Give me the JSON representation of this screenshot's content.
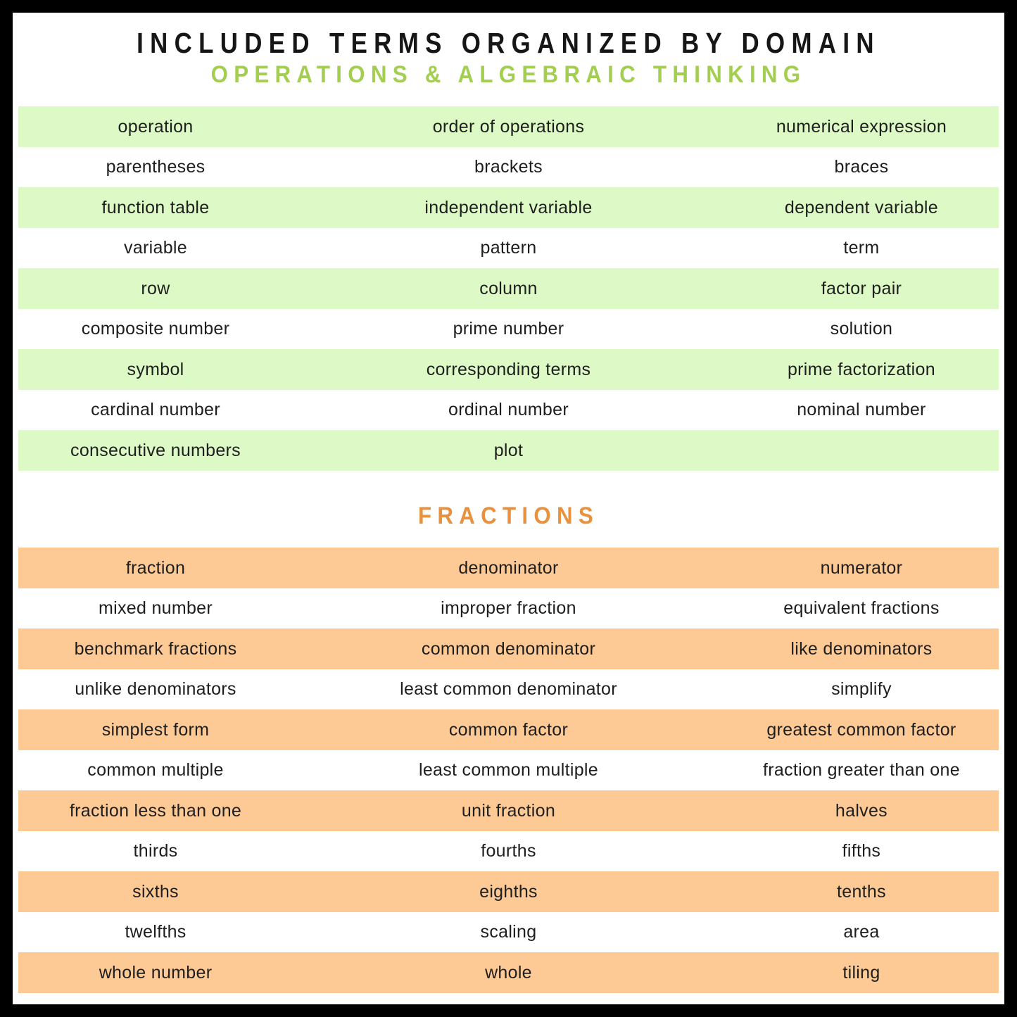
{
  "page": {
    "title": "INCLUDED TERMS ORGANIZED BY DOMAIN",
    "colors": {
      "frame": "#000000",
      "background": "#ffffff",
      "title_text": "#161616",
      "term_text": "#1e1e1e"
    }
  },
  "sections": [
    {
      "id": "operations-algebraic-thinking",
      "heading": "OPERATIONS & ALGEBRAIC THINKING",
      "heading_color": "#a3ce52",
      "row_color": "#ddfac6",
      "rows": [
        [
          "operation",
          "order of operations",
          "numerical expression"
        ],
        [
          "parentheses",
          "brackets",
          "braces"
        ],
        [
          "function table",
          "independent variable",
          "dependent variable"
        ],
        [
          "variable",
          "pattern",
          "term"
        ],
        [
          "row",
          "column",
          "factor pair"
        ],
        [
          "composite number",
          "prime number",
          "solution"
        ],
        [
          "symbol",
          "corresponding terms",
          "prime factorization"
        ],
        [
          "cardinal number",
          "ordinal number",
          "nominal number"
        ],
        [
          "consecutive numbers",
          "plot",
          ""
        ]
      ]
    },
    {
      "id": "fractions",
      "heading": "FRACTIONS",
      "heading_color": "#e8913f",
      "row_color": "#fdca95",
      "rows": [
        [
          "fraction",
          "denominator",
          "numerator"
        ],
        [
          "mixed number",
          "improper fraction",
          "equivalent fractions"
        ],
        [
          "benchmark fractions",
          "common denominator",
          "like denominators"
        ],
        [
          "unlike denominators",
          "least common denominator",
          "simplify"
        ],
        [
          "simplest form",
          "common factor",
          "greatest common factor"
        ],
        [
          "common multiple",
          "least common multiple",
          "fraction greater than one"
        ],
        [
          "fraction less than one",
          "unit fraction",
          "halves"
        ],
        [
          "thirds",
          "fourths",
          "fifths"
        ],
        [
          "sixths",
          "eighths",
          "tenths"
        ],
        [
          "twelfths",
          "scaling",
          "area"
        ],
        [
          "whole number",
          "whole",
          "tiling"
        ]
      ]
    }
  ]
}
